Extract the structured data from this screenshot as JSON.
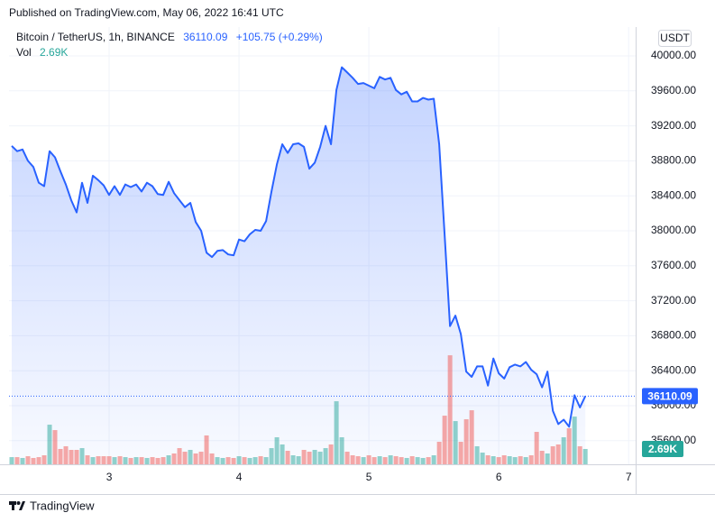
{
  "header": {
    "published": "Published on TradingView.com, May 06, 2022 16:41 UTC"
  },
  "footer": {
    "brand": "TradingView"
  },
  "chart_data": {
    "type": "line",
    "currency": "USDT",
    "change_label": "+105.75 (+0.29%)",
    "volume_last_label": "2.69K",
    "x": [
      30,
      31,
      32,
      33,
      34,
      35,
      36,
      37,
      38,
      39,
      40,
      41,
      42,
      43,
      44,
      45,
      46,
      47,
      48,
      49,
      50,
      51,
      52,
      53,
      54,
      55,
      56,
      57,
      58,
      59,
      60,
      61,
      62,
      63,
      64,
      65,
      66,
      67,
      68,
      69,
      70,
      71,
      72,
      73,
      74,
      75,
      76,
      77,
      78,
      79,
      80,
      81,
      82,
      83,
      84,
      85,
      86,
      87,
      88,
      89,
      90,
      91,
      92,
      93,
      94,
      95,
      96,
      97,
      98,
      99,
      100,
      101,
      102,
      103,
      104,
      105,
      106,
      107,
      108,
      109,
      110,
      111,
      112,
      113,
      114,
      115,
      116,
      117,
      118,
      119,
      120,
      121,
      122,
      123,
      124,
      125,
      126,
      127,
      128,
      129,
      130,
      131,
      132,
      133,
      134,
      135,
      136
    ],
    "xlim": [
      29.5,
      145.3
    ],
    "xticks": [
      {
        "value": 48,
        "label": "3"
      },
      {
        "value": 72,
        "label": "4"
      },
      {
        "value": 96,
        "label": "5"
      },
      {
        "value": 120,
        "label": "6"
      },
      {
        "value": 144,
        "label": "7"
      }
    ],
    "ylim": [
      35330,
      40330
    ],
    "yticks": [
      {
        "value": 35600,
        "label": "35600.00"
      },
      {
        "value": 36000,
        "label": "36000.00"
      },
      {
        "value": 36400,
        "label": "36400.00"
      },
      {
        "value": 36800,
        "label": "36800.00"
      },
      {
        "value": 37200,
        "label": "37200.00"
      },
      {
        "value": 37600,
        "label": "37600.00"
      },
      {
        "value": 38000,
        "label": "38000.00"
      },
      {
        "value": 38400,
        "label": "38400.00"
      },
      {
        "value": 38800,
        "label": "38800.00"
      },
      {
        "value": 39200,
        "label": "39200.00"
      },
      {
        "value": 39600,
        "label": "39600.00"
      },
      {
        "value": 40000,
        "label": "40000.00"
      }
    ],
    "y2lim": [
      0,
      76700
    ],
    "grid": true,
    "series": [
      {
        "name": "Bitcoin / TetherUS, 1h, BINANCE",
        "color": "#2962ff",
        "values": [
          38970,
          38910,
          38930,
          38800,
          38730,
          38550,
          38510,
          38910,
          38840,
          38680,
          38530,
          38350,
          38210,
          38550,
          38320,
          38630,
          38580,
          38520,
          38410,
          38510,
          38410,
          38530,
          38500,
          38530,
          38450,
          38550,
          38510,
          38420,
          38410,
          38560,
          38430,
          38350,
          38270,
          38320,
          38100,
          38000,
          37750,
          37700,
          37770,
          37780,
          37730,
          37720,
          37900,
          37880,
          37960,
          38010,
          38000,
          38110,
          38450,
          38760,
          38990,
          38890,
          38990,
          39000,
          38960,
          38710,
          38780,
          38960,
          39200,
          38990,
          39610,
          39870,
          39810,
          39750,
          39680,
          39690,
          39660,
          39630,
          39760,
          39730,
          39750,
          39610,
          39560,
          39590,
          39480,
          39480,
          39520,
          39500,
          39510,
          38990,
          37960,
          36910,
          37030,
          36820,
          36390,
          36330,
          36450,
          36450,
          36230,
          36540,
          36370,
          36310,
          36440,
          36470,
          36450,
          36500,
          36410,
          36360,
          36210,
          36390,
          35940,
          35790,
          35840,
          35760,
          36120,
          35980,
          36110.09
        ]
      },
      {
        "name": "Vol",
        "axis": "y2",
        "up_color": "#26a69a",
        "down_color": "#ef5350",
        "values": [
          1260,
          1260,
          1110,
          1420,
          1110,
          1260,
          1580,
          6950,
          6000,
          2690,
          3160,
          2530,
          2530,
          2840,
          1580,
          1260,
          1420,
          1420,
          1420,
          1260,
          1420,
          1260,
          1110,
          1260,
          1260,
          1110,
          1260,
          1110,
          1260,
          1580,
          1900,
          2840,
          2210,
          2530,
          1900,
          2210,
          5060,
          1900,
          1260,
          1110,
          1260,
          1110,
          1420,
          1260,
          1110,
          1260,
          1420,
          1260,
          2840,
          4740,
          3480,
          2370,
          1580,
          1420,
          2530,
          2210,
          2530,
          2210,
          2840,
          3480,
          11060,
          4740,
          2210,
          1580,
          1420,
          1260,
          1580,
          1260,
          1420,
          1260,
          1580,
          1420,
          1260,
          1110,
          1420,
          1260,
          1110,
          1260,
          1580,
          3950,
          8530,
          19120,
          7580,
          3950,
          7900,
          9480,
          3160,
          2050,
          1580,
          1420,
          1260,
          1580,
          1420,
          1260,
          1420,
          1260,
          1580,
          5690,
          2370,
          1900,
          3160,
          3480,
          4740,
          6320,
          8370,
          3160,
          2690
        ]
      }
    ]
  }
}
